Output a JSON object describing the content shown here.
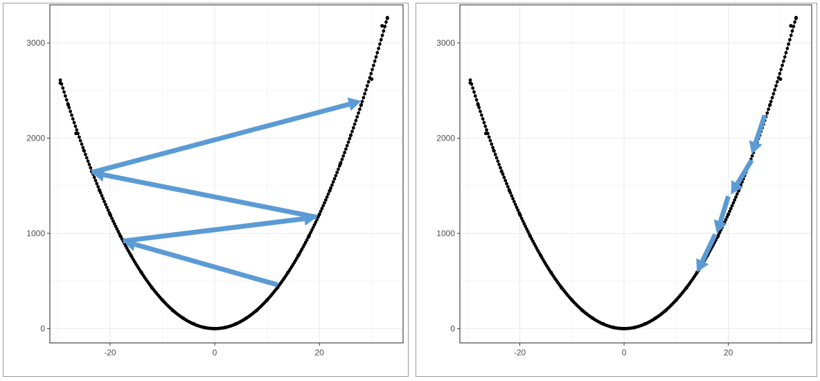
{
  "chart_data": [
    {
      "type": "scatter",
      "title": "",
      "xlabel": "",
      "ylabel": "",
      "xlim": [
        -31.5,
        36
      ],
      "ylim": [
        -150,
        3400
      ],
      "x_ticks": [
        -20,
        0,
        20
      ],
      "x_tick_labels": [
        "-20",
        "0",
        "20"
      ],
      "y_ticks": [
        0,
        1000,
        2000,
        3000
      ],
      "y_tick_labels": [
        "0",
        "1000",
        "2000",
        "3000"
      ],
      "grid": true,
      "curve": "y = 3x^2",
      "points_x_range": [
        -29.5,
        33
      ],
      "series": [
        {
          "values": [
            {
              "x": -29.5,
              "y": 2580
            },
            {
              "x": -28,
              "y": 2350
            },
            {
              "x": -26.5,
              "y": 2050
            },
            {
              "x": -25,
              "y": 1870
            },
            {
              "x": -23.5,
              "y": 1650
            },
            {
              "x": -22,
              "y": 1450
            },
            {
              "x": -20,
              "y": 1200
            },
            {
              "x": -18,
              "y": 970
            },
            {
              "x": -16,
              "y": 770
            },
            {
              "x": -14,
              "y": 590
            },
            {
              "x": -12,
              "y": 430
            },
            {
              "x": -10,
              "y": 300
            },
            {
              "x": -8,
              "y": 190
            },
            {
              "x": -6,
              "y": 110
            },
            {
              "x": -4,
              "y": 50
            },
            {
              "x": -2,
              "y": 12
            },
            {
              "x": 0,
              "y": 0
            },
            {
              "x": 2,
              "y": 12
            },
            {
              "x": 4,
              "y": 50
            },
            {
              "x": 6,
              "y": 110
            },
            {
              "x": 8,
              "y": 190
            },
            {
              "x": 10,
              "y": 300
            },
            {
              "x": 12,
              "y": 430
            },
            {
              "x": 14,
              "y": 590
            },
            {
              "x": 16,
              "y": 770
            },
            {
              "x": 18,
              "y": 970
            },
            {
              "x": 20,
              "y": 1200
            },
            {
              "x": 22,
              "y": 1450
            },
            {
              "x": 24,
              "y": 1730
            },
            {
              "x": 26,
              "y": 2030
            },
            {
              "x": 28,
              "y": 2350
            },
            {
              "x": 30,
              "y": 2620
            },
            {
              "x": 32,
              "y": 3180
            },
            {
              "x": 33,
              "y": 3260
            }
          ]
        }
      ],
      "arrows": [
        {
          "from": [
            12,
            460
          ],
          "to": [
            -17.5,
            920
          ]
        },
        {
          "from": [
            -17.5,
            920
          ],
          "to": [
            19.5,
            1170
          ]
        },
        {
          "from": [
            19.5,
            1170
          ],
          "to": [
            -23.5,
            1640
          ]
        },
        {
          "from": [
            -23.5,
            1640
          ],
          "to": [
            28,
            2390
          ]
        }
      ],
      "arrow_color": "#5b9bd5"
    },
    {
      "type": "scatter",
      "title": "",
      "xlabel": "",
      "ylabel": "",
      "xlim": [
        -31.5,
        36
      ],
      "ylim": [
        -150,
        3400
      ],
      "x_ticks": [
        -20,
        0,
        20
      ],
      "x_tick_labels": [
        "-20",
        "0",
        "20"
      ],
      "y_ticks": [
        0,
        1000,
        2000,
        3000
      ],
      "y_tick_labels": [
        "0",
        "1000",
        "2000",
        "3000"
      ],
      "grid": true,
      "curve": "y = 3x^2",
      "points_x_range": [
        -29.5,
        33
      ],
      "series": [
        {
          "values": [
            {
              "x": -29.5,
              "y": 2580
            },
            {
              "x": -28,
              "y": 2350
            },
            {
              "x": -26.5,
              "y": 2050
            },
            {
              "x": -25,
              "y": 1870
            },
            {
              "x": -23.5,
              "y": 1650
            },
            {
              "x": -22,
              "y": 1450
            },
            {
              "x": -20,
              "y": 1200
            },
            {
              "x": -18,
              "y": 970
            },
            {
              "x": -16,
              "y": 770
            },
            {
              "x": -14,
              "y": 590
            },
            {
              "x": -12,
              "y": 430
            },
            {
              "x": -10,
              "y": 300
            },
            {
              "x": -8,
              "y": 190
            },
            {
              "x": -6,
              "y": 110
            },
            {
              "x": -4,
              "y": 50
            },
            {
              "x": -2,
              "y": 12
            },
            {
              "x": 0,
              "y": 0
            },
            {
              "x": 2,
              "y": 12
            },
            {
              "x": 4,
              "y": 50
            },
            {
              "x": 6,
              "y": 110
            },
            {
              "x": 8,
              "y": 190
            },
            {
              "x": 10,
              "y": 300
            },
            {
              "x": 12,
              "y": 430
            },
            {
              "x": 14,
              "y": 590
            },
            {
              "x": 16,
              "y": 770
            },
            {
              "x": 18,
              "y": 970
            },
            {
              "x": 20,
              "y": 1200
            },
            {
              "x": 22,
              "y": 1450
            },
            {
              "x": 24,
              "y": 1730
            },
            {
              "x": 26,
              "y": 2030
            },
            {
              "x": 28,
              "y": 2350
            },
            {
              "x": 30,
              "y": 2620
            },
            {
              "x": 32,
              "y": 3180
            },
            {
              "x": 33,
              "y": 3260
            }
          ]
        }
      ],
      "arrows": [
        {
          "from": [
            27,
            2240
          ],
          "to": [
            24.5,
            1830
          ]
        },
        {
          "from": [
            24.5,
            1770
          ],
          "to": [
            20.5,
            1410
          ]
        },
        {
          "from": [
            20,
            1390
          ],
          "to": [
            17.8,
            1000
          ]
        },
        {
          "from": [
            17.5,
            990
          ],
          "to": [
            14,
            590
          ]
        }
      ],
      "arrow_color": "#5b9bd5"
    }
  ]
}
